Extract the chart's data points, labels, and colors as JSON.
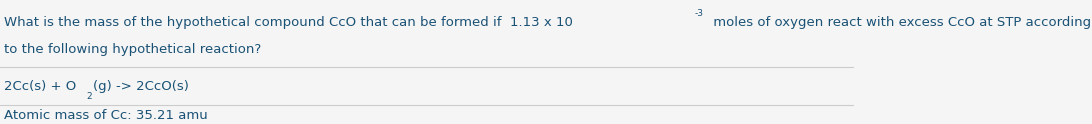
{
  "bg_color": "#f5f5f5",
  "text_color": "#1a5276",
  "separator_color": "#cccccc",
  "figsize": [
    10.92,
    1.24
  ],
  "dpi": 100,
  "fontsize": 9.5,
  "q1a": "What is the mass of the hypothetical compound CcO that can be formed if  1.13 x 10",
  "q1_sup": "-3",
  "q1b": " moles of oxygen react with excess CcO at STP according",
  "q2": "to the following hypothetical reaction?",
  "rxn_a": "2Cc(s) + O",
  "rxn_sub": "2",
  "rxn_b": "(g) -> 2CcO(s)",
  "atomic": "Atomic mass of Cc: 35.21 amu"
}
